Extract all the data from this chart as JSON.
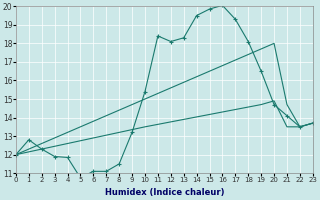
{
  "xlabel": "Humidex (Indice chaleur)",
  "bg_color": "#cce8e8",
  "grid_color": "#b0d0d0",
  "line_color": "#1a7a6e",
  "xlim": [
    0,
    23
  ],
  "ylim": [
    11,
    20
  ],
  "xticks": [
    0,
    1,
    2,
    3,
    4,
    5,
    6,
    7,
    8,
    9,
    10,
    11,
    12,
    13,
    14,
    15,
    16,
    17,
    18,
    19,
    20,
    21,
    22,
    23
  ],
  "yticks": [
    11,
    12,
    13,
    14,
    15,
    16,
    17,
    18,
    19,
    20
  ],
  "line1_x": [
    0,
    1,
    2,
    3,
    4,
    5,
    6,
    7,
    8,
    9,
    10,
    11,
    12,
    13,
    14,
    15,
    16,
    17,
    18,
    19,
    20,
    21,
    22,
    23
  ],
  "line1_y": [
    12.0,
    12.8,
    12.3,
    11.9,
    11.85,
    10.75,
    11.1,
    11.1,
    11.5,
    13.2,
    15.4,
    18.4,
    18.1,
    18.3,
    19.5,
    19.85,
    20.05,
    19.3,
    18.1,
    16.5,
    14.7,
    14.1,
    13.5,
    13.7
  ],
  "line2_x": [
    0,
    10,
    19,
    20,
    21,
    22,
    23
  ],
  "line2_y": [
    12.0,
    15.0,
    17.7,
    18.0,
    14.7,
    13.5,
    13.7
  ],
  "line3_x": [
    0,
    10,
    19,
    20,
    21,
    22,
    23
  ],
  "line3_y": [
    12.0,
    13.5,
    14.7,
    14.9,
    13.5,
    13.5,
    13.7
  ]
}
